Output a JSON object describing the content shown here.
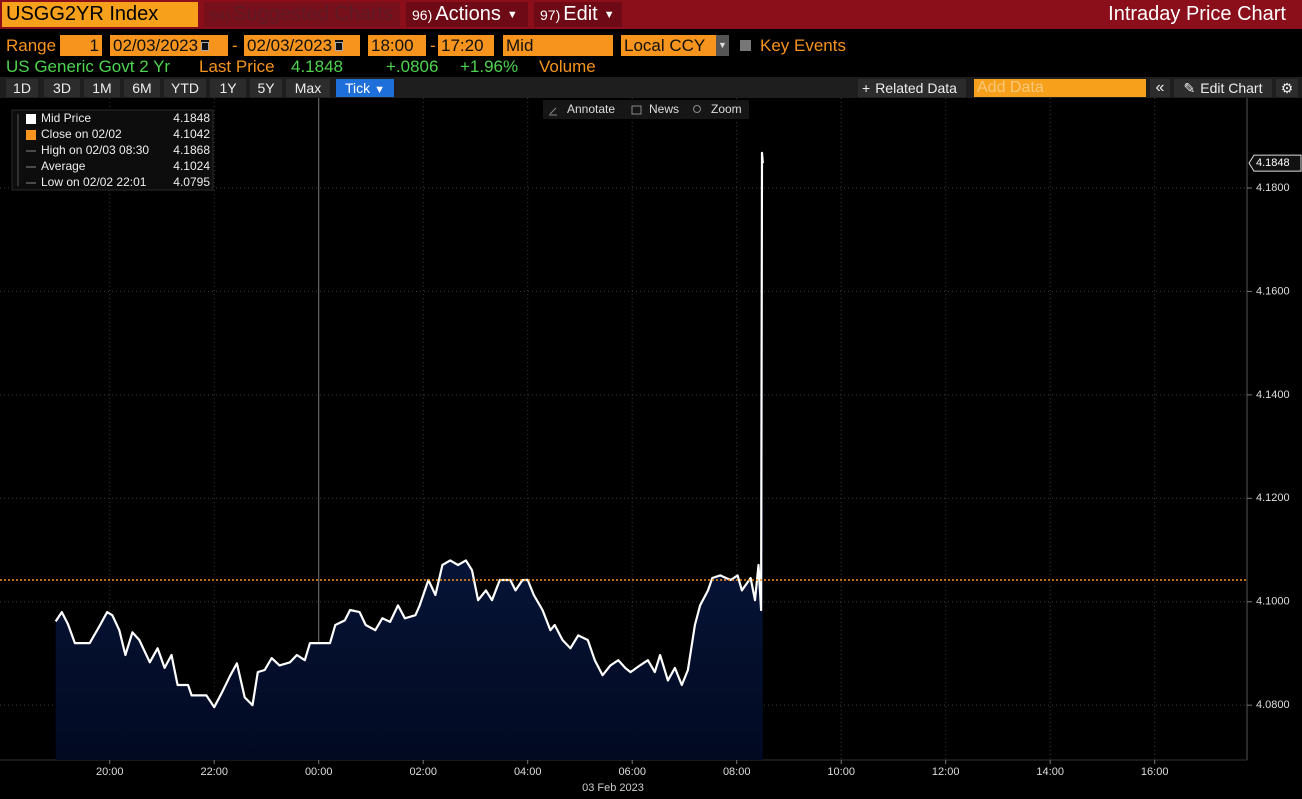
{
  "header": {
    "ticker": "USGG2YR Index",
    "menu": [
      {
        "num": "94)",
        "label": "Suggested Charts"
      },
      {
        "num": "96)",
        "label": "Actions"
      },
      {
        "num": "97)",
        "label": "Edit"
      }
    ],
    "title": "Intraday Price Chart"
  },
  "settings": {
    "range_label": "Range",
    "period": "1",
    "start_date": "02/03/2023",
    "separator": "-",
    "end_date": "02/03/2023",
    "start_time": "18:00",
    "end_time": "17:20",
    "price_type": "Mid",
    "currency": "Local CCY",
    "key_events": "Key Events"
  },
  "quote": {
    "name": "US Generic Govt 2 Yr",
    "last_price_label": "Last Price",
    "last_price": "4.1848",
    "change": "+.0806",
    "change_pct": "+1.96%",
    "volume_label": "Volume"
  },
  "toolbar": {
    "periods": [
      "1D",
      "3D",
      "1M",
      "6M",
      "YTD",
      "1Y",
      "5Y",
      "Max",
      "Tick"
    ],
    "related_data": "Related Data",
    "add_data": "Add Data",
    "edit_chart": "Edit Chart"
  },
  "chart_tools": [
    "Annotate",
    "News",
    "Zoom"
  ],
  "chart_data": {
    "type": "line",
    "x": [
      "18:58",
      "19:05",
      "19:12",
      "19:20",
      "19:37",
      "19:49",
      "19:57",
      "20:03",
      "20:11",
      "20:18",
      "20:26",
      "20:34",
      "20:46",
      "20:55",
      "21:03",
      "21:11",
      "21:18",
      "21:30",
      "21:34",
      "21:51",
      "22:00",
      "22:09",
      "22:18",
      "22:26",
      "22:35",
      "22:44",
      "22:50",
      "22:58",
      "23:06",
      "23:15",
      "23:27",
      "23:35",
      "23:44",
      "23:50",
      "00:13",
      "00:19",
      "00:30",
      "00:36",
      "00:47",
      "00:54",
      "01:05",
      "01:13",
      "01:22",
      "01:31",
      "01:39",
      "01:51",
      "01:56",
      "02:06",
      "02:14",
      "02:22",
      "02:31",
      "02:40",
      "02:49",
      "02:56",
      "03:03",
      "03:12",
      "03:19",
      "03:28",
      "03:40",
      "03:46",
      "03:54",
      "04:00",
      "04:07",
      "04:17",
      "04:26",
      "04:31",
      "04:40",
      "04:49",
      "04:58",
      "05:09",
      "05:17",
      "05:26",
      "05:35",
      "05:44",
      "05:52",
      "05:58",
      "06:09",
      "06:18",
      "06:26",
      "06:32",
      "06:41",
      "06:49",
      "06:57",
      "07:04",
      "07:12",
      "07:18",
      "07:27",
      "07:32",
      "07:41",
      "07:53",
      "08:01",
      "08:06",
      "08:16",
      "08:21",
      "08:25",
      "08:28",
      "08:29",
      "08:30"
    ],
    "series": [
      {
        "name": "Mid Price",
        "color": "#ffffff",
        "values": [
          4.0962,
          4.098,
          4.0957,
          4.092,
          4.092,
          4.0955,
          4.098,
          4.0974,
          4.0945,
          4.0897,
          4.0941,
          4.0926,
          4.0883,
          4.091,
          4.0872,
          4.0897,
          4.0839,
          4.0839,
          4.0819,
          4.0819,
          4.0796,
          4.0825,
          4.0856,
          4.0881,
          4.0815,
          4.08,
          4.0864,
          4.0868,
          4.0891,
          4.0877,
          4.0883,
          4.0897,
          4.0887,
          4.092,
          4.092,
          4.0955,
          4.0964,
          4.0984,
          4.098,
          4.0955,
          4.0945,
          4.0968,
          4.0961,
          4.0993,
          4.0968,
          4.0974,
          4.0993,
          4.1042,
          4.1013,
          4.1071,
          4.108,
          4.1071,
          4.108,
          4.1061,
          4.1003,
          4.1022,
          4.1003,
          4.1042,
          4.1042,
          4.1022,
          4.1042,
          4.1042,
          4.1013,
          4.0984,
          4.0945,
          4.0955,
          4.0926,
          4.091,
          4.0935,
          4.0926,
          4.0887,
          4.0858,
          4.0877,
          4.0887,
          4.0872,
          4.0864,
          4.0877,
          4.0887,
          4.0864,
          4.0897,
          4.0848,
          4.0872,
          4.0839,
          4.0868,
          4.0955,
          4.0993,
          4.1022,
          4.1046,
          4.1051,
          4.1042,
          4.1051,
          4.1022,
          4.1046,
          4.1003,
          4.1071,
          4.0984,
          4.1868,
          4.1848
        ]
      }
    ],
    "stats": [
      {
        "name": "Close on 02/02",
        "value": 4.1042,
        "color": "#f7941d"
      },
      {
        "name": "High on 02/03 08:30",
        "value": 4.1868
      },
      {
        "name": "Average",
        "value": 4.1024
      },
      {
        "name": "Low on 02/02 22:01",
        "value": 4.0795
      }
    ],
    "xlim": [
      "17:54",
      "17:46"
    ],
    "xticks": [
      "20:00",
      "22:00",
      "00:00",
      "02:00",
      "04:00",
      "06:00",
      "08:00",
      "10:00",
      "12:00",
      "14:00",
      "16:00"
    ],
    "x_date_label": "03 Feb 2023",
    "ylim": [
      4.0694,
      4.1974
    ],
    "yticks": [
      {
        "value": 4.08,
        "label": "4.0800"
      },
      {
        "value": 4.1,
        "label": "4.1000"
      },
      {
        "value": 4.12,
        "label": "4.1200"
      },
      {
        "value": 4.14,
        "label": "4.1400"
      },
      {
        "value": 4.16,
        "label": "4.1600"
      },
      {
        "value": 4.18,
        "label": "4.1800"
      }
    ],
    "grid": true
  }
}
